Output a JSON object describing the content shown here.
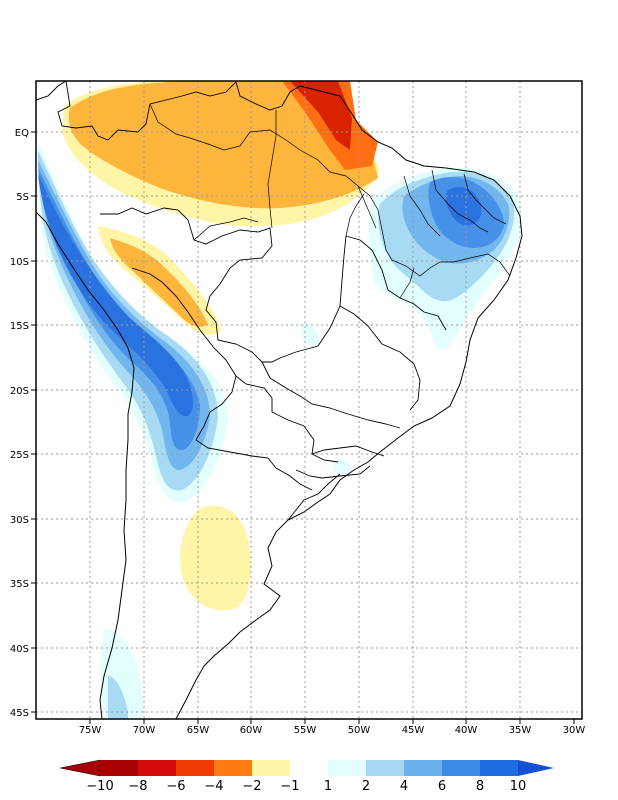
{
  "map": {
    "lon_labels": [
      "75W",
      "70W",
      "65W",
      "60W",
      "55W",
      "50W",
      "45W",
      "40W",
      "35W",
      "30W"
    ],
    "lat_labels": [
      "EQ",
      "5S",
      "10S",
      "15S",
      "20S",
      "25S",
      "30S",
      "35S",
      "40S",
      "45S"
    ]
  },
  "colorbar": {
    "labels": [
      "−10",
      "−8",
      "−6",
      "−4",
      "−2",
      "−1",
      "1",
      "2",
      "4",
      "6",
      "8",
      "10"
    ],
    "colors": {
      "neg": [
        "#a80000",
        "#d20a0a",
        "#ee3a00",
        "#ff7a12",
        "#ffb43c",
        "#fff4a6"
      ],
      "pos": [
        "#e2fffe",
        "#a6d8f4",
        "#6ab2ef",
        "#3c8ce6",
        "#1e6ee1",
        "#1450d2"
      ]
    }
  },
  "colors": {
    "red": "#d92200",
    "orange": "#ff6e10",
    "amber": "#fdb53c",
    "pale_yellow": "#fff5a6",
    "pale_cyan": "#e2fffe",
    "light_blue": "#a8daf4",
    "mid_blue": "#72b6ef",
    "blue": "#4690e8",
    "deep_blue": "#2a72e0"
  }
}
